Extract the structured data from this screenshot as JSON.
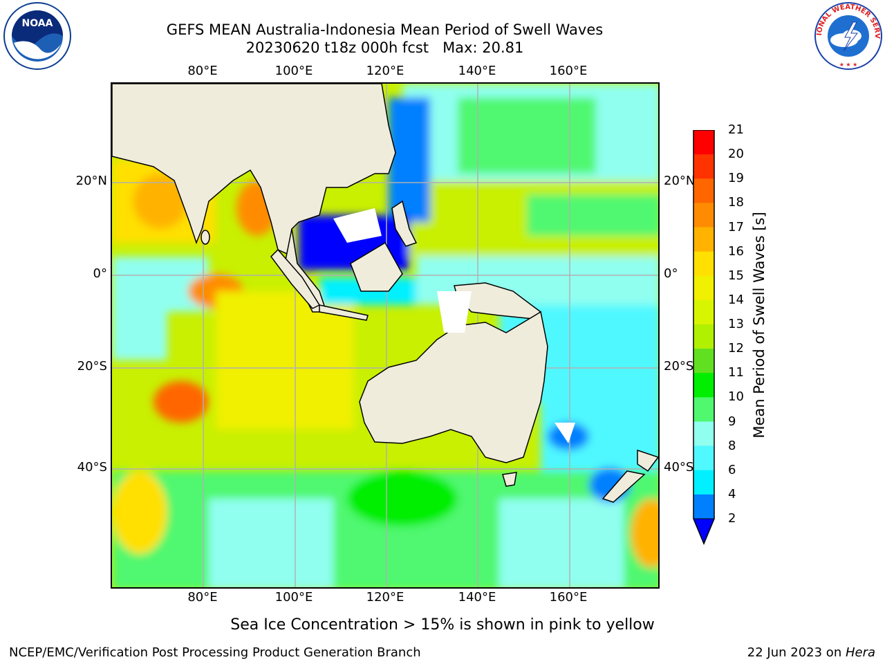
{
  "title": {
    "line1": "GEFS MEAN Australia-Indonesia Mean Period of Swell Waves",
    "line2": "20230620 t18z 000h fcst   Max: 20.81"
  },
  "logos": {
    "noaa": {
      "icon": "noaa-logo-icon",
      "text": "NOAA"
    },
    "nws": {
      "icon": "nws-logo-icon",
      "text": "NATIONAL WEATHER SERVICE"
    }
  },
  "map": {
    "lon_labels": [
      "80°E",
      "100°E",
      "120°E",
      "140°E",
      "160°E"
    ],
    "lat_labels_left": [
      "20°N",
      "0°",
      "20°S",
      "40°S"
    ],
    "lat_labels_right": [
      "20°N",
      "0°",
      "20°S",
      "40°S"
    ],
    "land_color": "#efecdc",
    "grid_color": "#b0b0b0"
  },
  "colorbar": {
    "label": "Mean Period of Swell Waves [s]",
    "ticks": [
      "21",
      "20",
      "19",
      "18",
      "17",
      "16",
      "15",
      "14",
      "13",
      "12",
      "11",
      "10",
      "9",
      "8",
      "6",
      "4",
      "2"
    ],
    "colors": [
      "#ff0000",
      "#ff3300",
      "#ff6600",
      "#ff8c00",
      "#ffb300",
      "#ffe000",
      "#f0f000",
      "#d8f500",
      "#b0f000",
      "#60e020",
      "#00ee00",
      "#50f870",
      "#90fff0",
      "#50f8ff",
      "#00f0ff",
      "#0080ff"
    ],
    "under_color": "#0000ff"
  },
  "ice_note": "Sea Ice Concentration > 15% is shown in pink to yellow",
  "footer": {
    "left": "NCEP/EMC/Verification Post Processing Product Generation Branch",
    "right_date": "22 Jun 2023 on ",
    "right_host": "Hera"
  }
}
